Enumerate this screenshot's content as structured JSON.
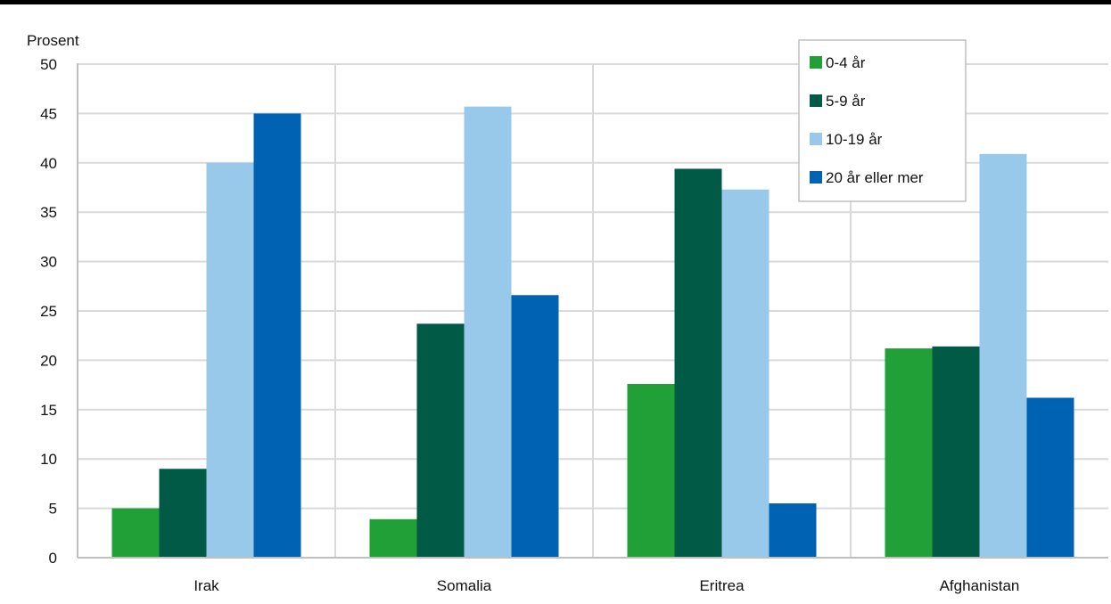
{
  "chart_data": {
    "type": "bar",
    "ylabel": "Prosent",
    "ylim": [
      0,
      50
    ],
    "yticks": [
      "0",
      "5",
      "10",
      "15",
      "20",
      "25",
      "30",
      "35",
      "40",
      "45",
      "50"
    ],
    "categories": [
      "Irak",
      "Somalia",
      "Eritrea",
      "Afghanistan"
    ],
    "series": [
      {
        "name": "0-4 år",
        "color": "#21a038",
        "values": [
          5,
          3.9,
          17.6,
          21.2
        ]
      },
      {
        "name": "5-9 år",
        "color": "#005a46",
        "values": [
          9,
          23.7,
          39.4,
          21.4
        ]
      },
      {
        "name": "10-19 år",
        "color": "#99c9ea",
        "values": [
          40,
          45.7,
          37.3,
          40.9
        ]
      },
      {
        "name": "20 år eller mer",
        "color": "#0062b2",
        "values": [
          45,
          26.6,
          5.5,
          16.2
        ]
      }
    ],
    "grid": true,
    "legend_position": "top-right"
  }
}
